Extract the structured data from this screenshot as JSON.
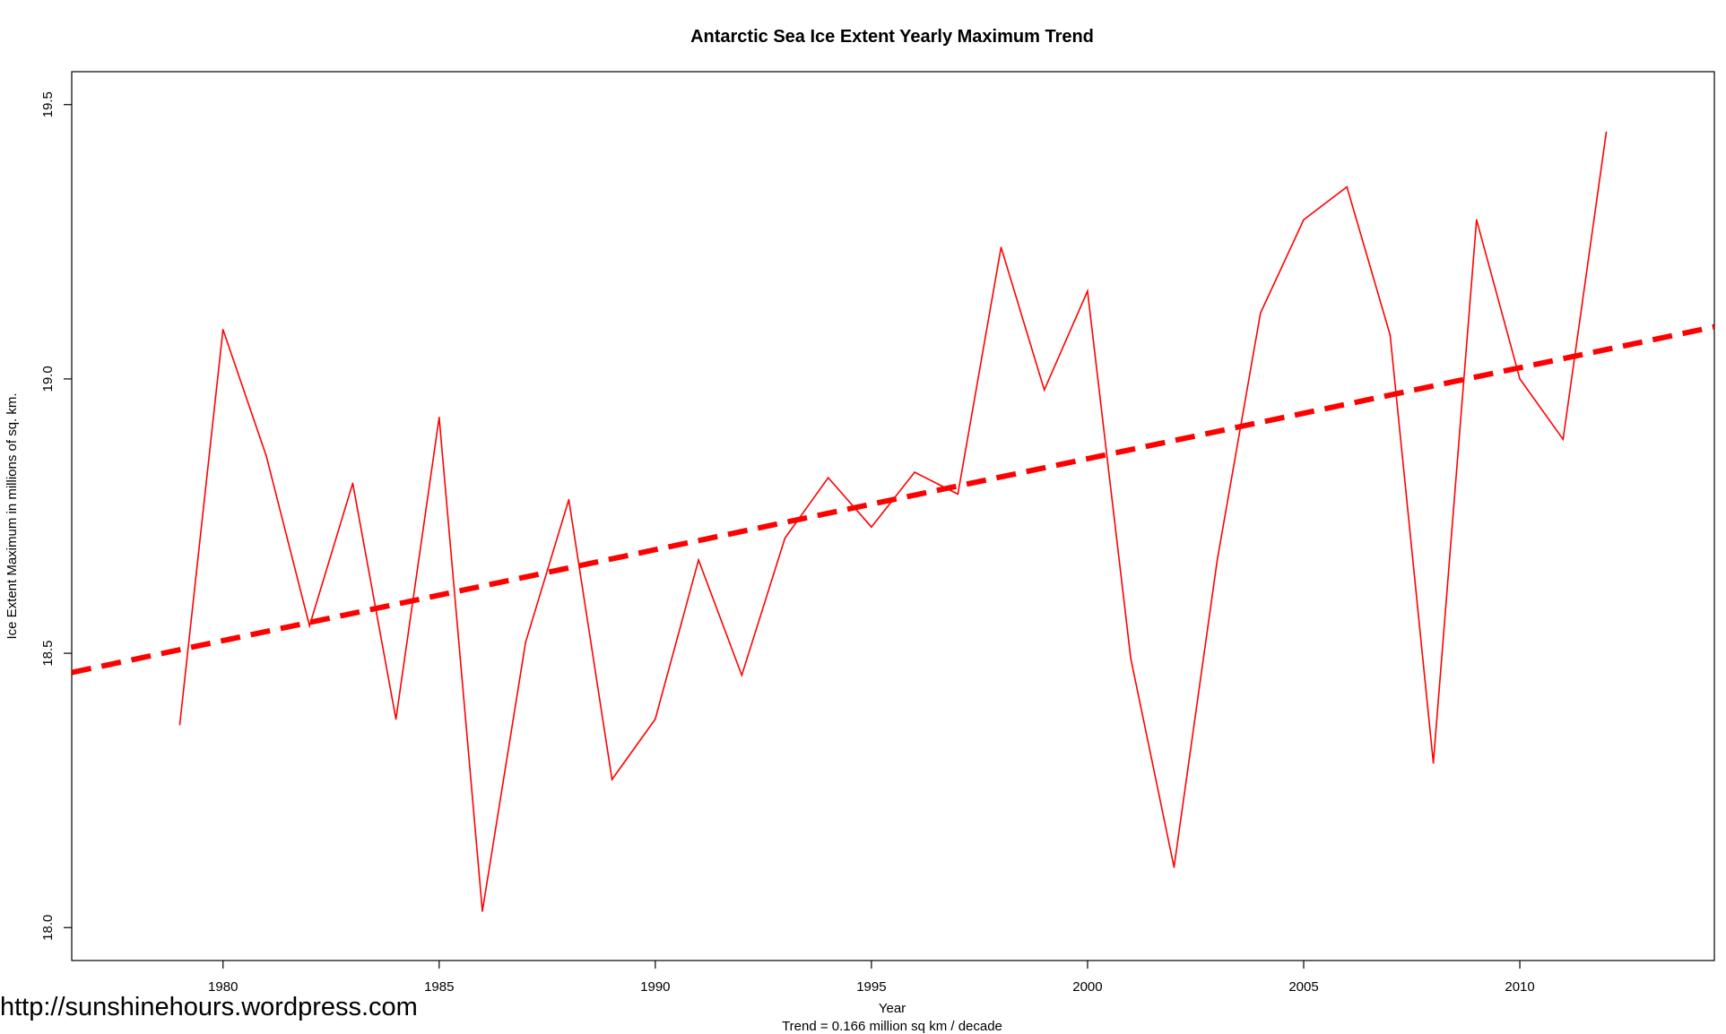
{
  "chart_data": {
    "type": "line",
    "title": "Antarctic Sea Ice Extent Yearly Maximum Trend",
    "xlabel": "Year",
    "ylabel": "Ice Extent Maximum in millions of sq. km.",
    "subtitle": "Trend = 0.166 million sq km / decade",
    "xlim": [
      1976.5,
      2014.5
    ],
    "ylim": [
      17.94,
      19.56
    ],
    "x_ticks": [
      1980,
      1985,
      1990,
      1995,
      2000,
      2005,
      2010
    ],
    "y_ticks": [
      18.0,
      18.5,
      19.0,
      19.5
    ],
    "y_tick_labels": [
      "18.0",
      "18.5",
      "19.0",
      "19.5"
    ],
    "grid": false,
    "series": [
      {
        "color": "#ff0000",
        "x": [
          1979,
          1980,
          1981,
          1982,
          1983,
          1984,
          1985,
          1986,
          1987,
          1988,
          1989,
          1990,
          1991,
          1992,
          1993,
          1994,
          1995,
          1996,
          1997,
          1998,
          1999,
          2000,
          2001,
          2002,
          2003,
          2004,
          2005,
          2006,
          2007,
          2008,
          2009,
          2010,
          2011,
          2012
        ],
        "y": [
          18.37,
          19.09,
          18.86,
          18.55,
          18.81,
          18.38,
          18.93,
          18.03,
          18.52,
          18.78,
          18.27,
          18.38,
          18.67,
          18.46,
          18.71,
          18.82,
          18.73,
          18.83,
          18.79,
          19.24,
          18.98,
          19.16,
          18.49,
          18.11,
          18.67,
          19.12,
          19.29,
          19.35,
          19.08,
          18.3,
          19.29,
          19.0,
          18.89,
          19.45
        ]
      },
      {
        "style": "dashed",
        "color": "#ff0000",
        "x": [
          1976.5,
          2014.5
        ],
        "y": [
          18.465,
          19.095
        ]
      }
    ]
  },
  "watermark": "http://sunshinehours.wordpress.com"
}
